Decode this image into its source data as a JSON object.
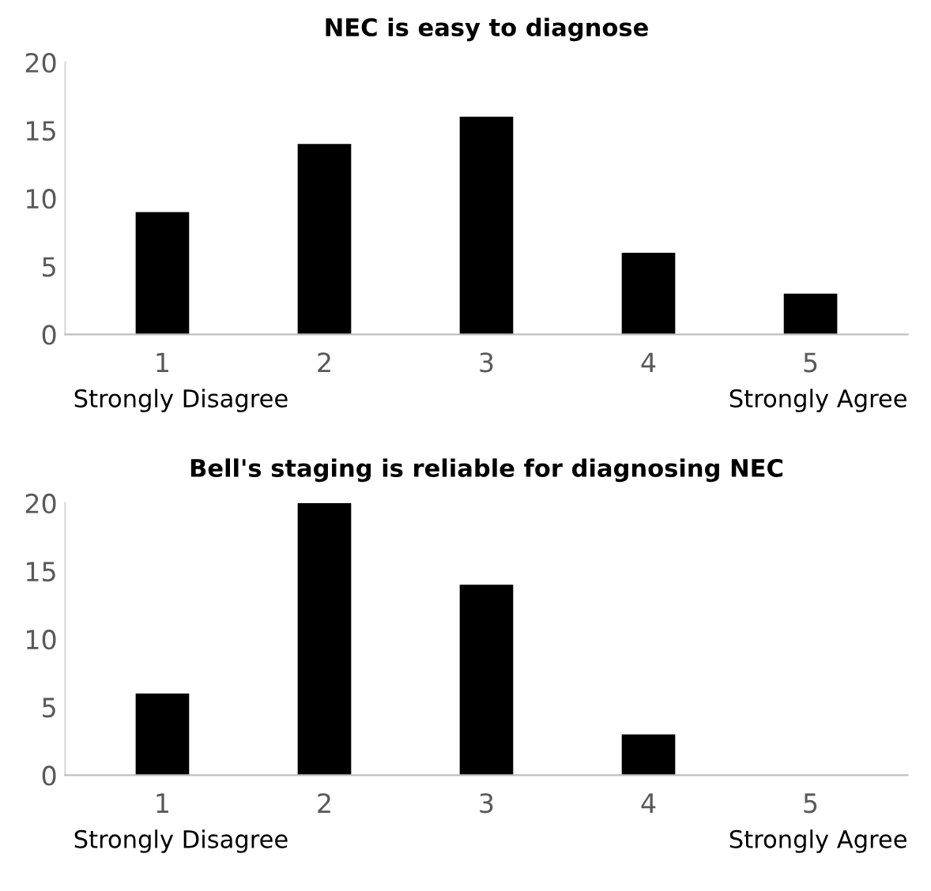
{
  "chart_data": [
    {
      "type": "bar",
      "title": "NEC is easy to diagnose",
      "categories": [
        "1",
        "2",
        "3",
        "4",
        "5"
      ],
      "values": [
        9,
        14,
        16,
        6,
        3
      ],
      "color": "#000000",
      "ylim": [
        0,
        20
      ],
      "yticks": [
        0,
        5,
        10,
        15,
        20
      ],
      "grid": false,
      "annotations": [
        "Strongly Disagree",
        "Strongly Agree"
      ]
    },
    {
      "type": "bar",
      "title": "Bell's staging is reliable for diagnosing NEC",
      "categories": [
        "1",
        "2",
        "3",
        "4",
        "5"
      ],
      "values": [
        6,
        20,
        14,
        3,
        0
      ],
      "color": "#000000",
      "ylim": [
        0,
        20
      ],
      "yticks": [
        0,
        5,
        10,
        15,
        20
      ],
      "grid": false,
      "annotations": [
        "Strongly Disagree",
        "Strongly Agree"
      ]
    }
  ]
}
